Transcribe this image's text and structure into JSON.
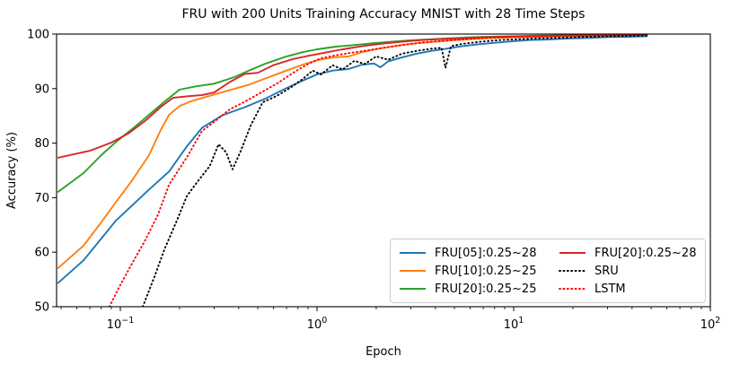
{
  "chart_data": {
    "type": "line",
    "title": "FRU with 200 Units Training Accuracy MNIST with 28 Time Steps",
    "xlabel": "Epoch",
    "ylabel": "Accuracy (%)",
    "x_scale": "log",
    "xlim": [
      0.0474,
      100
    ],
    "ylim": [
      50,
      100
    ],
    "grid": false,
    "legend_position": "lower right",
    "legend_columns": 2,
    "x_ticks": [
      {
        "value": 0.1,
        "mantissa": "10",
        "exponent": "−1"
      },
      {
        "value": 1,
        "mantissa": "10",
        "exponent": "0"
      },
      {
        "value": 10,
        "mantissa": "10",
        "exponent": "1"
      },
      {
        "value": 100,
        "mantissa": "10",
        "exponent": "2"
      }
    ],
    "y_ticks": [
      50,
      60,
      70,
      80,
      90,
      100
    ],
    "colors": {
      "blue": "#1f77b4",
      "orange": "#ff7f0e",
      "green": "#2ca02c",
      "dark_red": "#d62728",
      "black": "#000000",
      "bright_red": "#ff0000"
    },
    "series": [
      {
        "name": "FRU[05]:0.25~28",
        "color": "#1f77b4",
        "style": "solid",
        "points": [
          [
            0.048,
            54.3
          ],
          [
            0.065,
            58.5
          ],
          [
            0.08,
            62.5
          ],
          [
            0.095,
            65.8
          ],
          [
            0.115,
            68.6
          ],
          [
            0.14,
            71.5
          ],
          [
            0.177,
            74.8
          ],
          [
            0.218,
            79.4
          ],
          [
            0.26,
            82.8
          ],
          [
            0.33,
            85.1
          ],
          [
            0.43,
            86.6
          ],
          [
            0.55,
            88.2
          ],
          [
            0.7,
            90.1
          ],
          [
            0.85,
            91.5
          ],
          [
            1.0,
            92.6
          ],
          [
            1.2,
            93.3
          ],
          [
            1.45,
            93.6
          ],
          [
            1.7,
            94.4
          ],
          [
            1.95,
            94.6
          ],
          [
            2.1,
            93.9
          ],
          [
            2.3,
            95.0
          ],
          [
            2.7,
            95.7
          ],
          [
            3.2,
            96.4
          ],
          [
            3.8,
            96.9
          ],
          [
            4.5,
            97.3
          ],
          [
            5.5,
            97.8
          ],
          [
            6.5,
            98.1
          ],
          [
            8,
            98.4
          ],
          [
            10,
            98.7
          ],
          [
            12,
            98.9
          ],
          [
            15,
            99.0
          ],
          [
            19,
            99.2
          ],
          [
            24,
            99.3
          ],
          [
            30,
            99.45
          ],
          [
            38,
            99.5
          ],
          [
            48,
            99.6
          ]
        ]
      },
      {
        "name": "FRU[10]:0.25~25",
        "color": "#ff7f0e",
        "style": "solid",
        "points": [
          [
            0.048,
            57.0
          ],
          [
            0.065,
            61.2
          ],
          [
            0.08,
            65.5
          ],
          [
            0.095,
            69.2
          ],
          [
            0.115,
            73.2
          ],
          [
            0.14,
            77.8
          ],
          [
            0.16,
            82.3
          ],
          [
            0.177,
            85.2
          ],
          [
            0.2,
            86.8
          ],
          [
            0.23,
            87.7
          ],
          [
            0.28,
            88.6
          ],
          [
            0.35,
            89.6
          ],
          [
            0.45,
            90.7
          ],
          [
            0.55,
            91.9
          ],
          [
            0.7,
            93.3
          ],
          [
            0.85,
            94.4
          ],
          [
            1.0,
            95.2
          ],
          [
            1.2,
            95.7
          ],
          [
            1.45,
            95.9
          ],
          [
            1.7,
            96.7
          ],
          [
            2.1,
            97.4
          ],
          [
            2.6,
            97.9
          ],
          [
            3.2,
            98.3
          ],
          [
            4.0,
            98.6
          ],
          [
            5.0,
            98.9
          ],
          [
            6.5,
            99.15
          ],
          [
            8.0,
            99.3
          ],
          [
            10,
            99.4
          ],
          [
            13,
            99.5
          ],
          [
            17,
            99.6
          ],
          [
            22,
            99.65
          ],
          [
            30,
            99.75
          ],
          [
            48,
            99.85
          ]
        ]
      },
      {
        "name": "FRU[20]:0.25~25",
        "color": "#2ca02c",
        "style": "solid",
        "points": [
          [
            0.048,
            71.0
          ],
          [
            0.065,
            74.5
          ],
          [
            0.08,
            77.8
          ],
          [
            0.095,
            80.2
          ],
          [
            0.115,
            82.6
          ],
          [
            0.14,
            85.2
          ],
          [
            0.17,
            87.8
          ],
          [
            0.2,
            89.8
          ],
          [
            0.24,
            90.4
          ],
          [
            0.3,
            90.9
          ],
          [
            0.38,
            92.1
          ],
          [
            0.45,
            93.3
          ],
          [
            0.55,
            94.6
          ],
          [
            0.7,
            95.9
          ],
          [
            0.85,
            96.7
          ],
          [
            1.0,
            97.2
          ],
          [
            1.25,
            97.7
          ],
          [
            1.55,
            98.0
          ],
          [
            1.9,
            98.3
          ],
          [
            2.4,
            98.6
          ],
          [
            3.0,
            98.85
          ],
          [
            3.8,
            99.05
          ],
          [
            4.8,
            99.25
          ],
          [
            6.0,
            99.4
          ],
          [
            7.5,
            99.5
          ],
          [
            10,
            99.6
          ],
          [
            13,
            99.7
          ],
          [
            17,
            99.75
          ],
          [
            23,
            99.82
          ],
          [
            30,
            99.87
          ],
          [
            48,
            99.92
          ]
        ]
      },
      {
        "name": "FRU[20]:0.25~28",
        "color": "#d62728",
        "style": "solid",
        "points": [
          [
            0.048,
            77.3
          ],
          [
            0.07,
            78.6
          ],
          [
            0.09,
            80.1
          ],
          [
            0.11,
            81.8
          ],
          [
            0.135,
            84.2
          ],
          [
            0.16,
            86.6
          ],
          [
            0.185,
            88.3
          ],
          [
            0.22,
            88.6
          ],
          [
            0.26,
            88.8
          ],
          [
            0.3,
            89.3
          ],
          [
            0.36,
            91.2
          ],
          [
            0.43,
            92.7
          ],
          [
            0.5,
            92.9
          ],
          [
            0.6,
            94.3
          ],
          [
            0.75,
            95.4
          ],
          [
            0.9,
            96.0
          ],
          [
            1.1,
            96.6
          ],
          [
            1.35,
            97.2
          ],
          [
            1.7,
            97.8
          ],
          [
            2.1,
            98.2
          ],
          [
            2.7,
            98.6
          ],
          [
            3.4,
            98.9
          ],
          [
            4.3,
            99.1
          ],
          [
            5.5,
            99.25
          ],
          [
            7.0,
            99.4
          ],
          [
            9.0,
            99.5
          ],
          [
            12,
            99.6
          ],
          [
            16,
            99.7
          ],
          [
            21,
            99.75
          ],
          [
            28,
            99.82
          ],
          [
            38,
            99.87
          ],
          [
            48,
            99.9
          ]
        ]
      },
      {
        "name": "SRU",
        "color": "#000000",
        "style": "dotted",
        "points": [
          [
            0.13,
            50.0
          ],
          [
            0.148,
            55.2
          ],
          [
            0.168,
            60.6
          ],
          [
            0.196,
            66.2
          ],
          [
            0.218,
            70.3
          ],
          [
            0.25,
            73.2
          ],
          [
            0.285,
            75.8
          ],
          [
            0.316,
            79.8
          ],
          [
            0.345,
            78.3
          ],
          [
            0.372,
            75.2
          ],
          [
            0.41,
            78.6
          ],
          [
            0.46,
            83.2
          ],
          [
            0.53,
            87.5
          ],
          [
            0.62,
            88.6
          ],
          [
            0.72,
            90.0
          ],
          [
            0.85,
            91.8
          ],
          [
            0.95,
            93.3
          ],
          [
            1.05,
            92.6
          ],
          [
            1.2,
            94.3
          ],
          [
            1.35,
            93.5
          ],
          [
            1.55,
            95.1
          ],
          [
            1.75,
            94.5
          ],
          [
            2.0,
            95.9
          ],
          [
            2.3,
            95.3
          ],
          [
            2.7,
            96.4
          ],
          [
            3.2,
            96.9
          ],
          [
            3.8,
            97.3
          ],
          [
            4.3,
            97.5
          ],
          [
            4.5,
            93.8
          ],
          [
            4.8,
            97.8
          ],
          [
            5.5,
            98.2
          ],
          [
            6.8,
            98.6
          ],
          [
            8.5,
            98.9
          ],
          [
            11,
            99.1
          ],
          [
            14,
            99.25
          ],
          [
            18,
            99.35
          ],
          [
            24,
            99.5
          ],
          [
            32,
            99.6
          ],
          [
            48,
            99.75
          ]
        ]
      },
      {
        "name": "LSTM",
        "color": "#ff0000",
        "style": "dotted",
        "points": [
          [
            0.088,
            50.0
          ],
          [
            0.1,
            54.0
          ],
          [
            0.115,
            58.0
          ],
          [
            0.133,
            62.0
          ],
          [
            0.155,
            66.8
          ],
          [
            0.177,
            72.4
          ],
          [
            0.218,
            77.4
          ],
          [
            0.26,
            82.2
          ],
          [
            0.3,
            83.9
          ],
          [
            0.36,
            86.2
          ],
          [
            0.43,
            87.6
          ],
          [
            0.52,
            89.3
          ],
          [
            0.63,
            91.0
          ],
          [
            0.78,
            93.2
          ],
          [
            0.9,
            94.5
          ],
          [
            1.05,
            95.6
          ],
          [
            1.25,
            96.1
          ],
          [
            1.5,
            96.6
          ],
          [
            1.8,
            97.0
          ],
          [
            2.2,
            97.5
          ],
          [
            2.8,
            98.1
          ],
          [
            3.5,
            98.5
          ],
          [
            4.5,
            98.8
          ],
          [
            5.5,
            99.0
          ],
          [
            7.0,
            99.25
          ],
          [
            9.0,
            99.4
          ],
          [
            12,
            99.55
          ],
          [
            16,
            99.65
          ],
          [
            21,
            99.72
          ],
          [
            28,
            99.8
          ],
          [
            38,
            99.85
          ],
          [
            48,
            99.9
          ]
        ]
      }
    ]
  }
}
